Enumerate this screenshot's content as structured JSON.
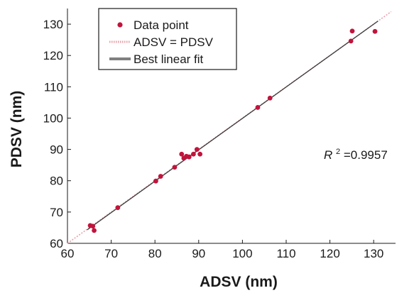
{
  "chart_data": {
    "type": "scatter",
    "title": "",
    "xlabel": "ADSV (nm)",
    "ylabel": "PDSV (nm)",
    "xlim": [
      60,
      135
    ],
    "ylim": [
      60,
      135
    ],
    "xticks": [
      60,
      70,
      80,
      90,
      100,
      110,
      120,
      130
    ],
    "yticks": [
      60,
      70,
      80,
      90,
      100,
      110,
      120,
      130
    ],
    "grid": false,
    "legend_position": "top-left",
    "series": [
      {
        "name": "Data point",
        "kind": "points",
        "color": "#c0143c",
        "x": [
          65.2,
          65.8,
          66.1,
          71.5,
          80.2,
          81.3,
          84.5,
          86.1,
          86.6,
          87.2,
          87.8,
          88.8,
          89.6,
          90.3,
          103.5,
          106.3,
          124.8,
          125.1,
          130.3
        ],
        "y": [
          65.7,
          65.5,
          64.1,
          71.4,
          79.9,
          81.4,
          84.3,
          88.5,
          87.2,
          87.8,
          87.6,
          88.5,
          90.0,
          88.5,
          103.4,
          106.4,
          124.6,
          127.8,
          127.7
        ]
      },
      {
        "name": "ADSV = PDSV",
        "kind": "line",
        "style": "dotted",
        "color": "#e8a0a8",
        "x": [
          60,
          134
        ],
        "y": [
          60,
          134
        ]
      },
      {
        "name": "Best linear fit",
        "kind": "line",
        "style": "solid",
        "color": "#3a3a3a",
        "x": [
          64.5,
          131
        ],
        "y": [
          64.3,
          131
        ]
      }
    ],
    "annotation": {
      "symbol": "R",
      "superscript": "2",
      "value_text": "=0.9957"
    }
  }
}
